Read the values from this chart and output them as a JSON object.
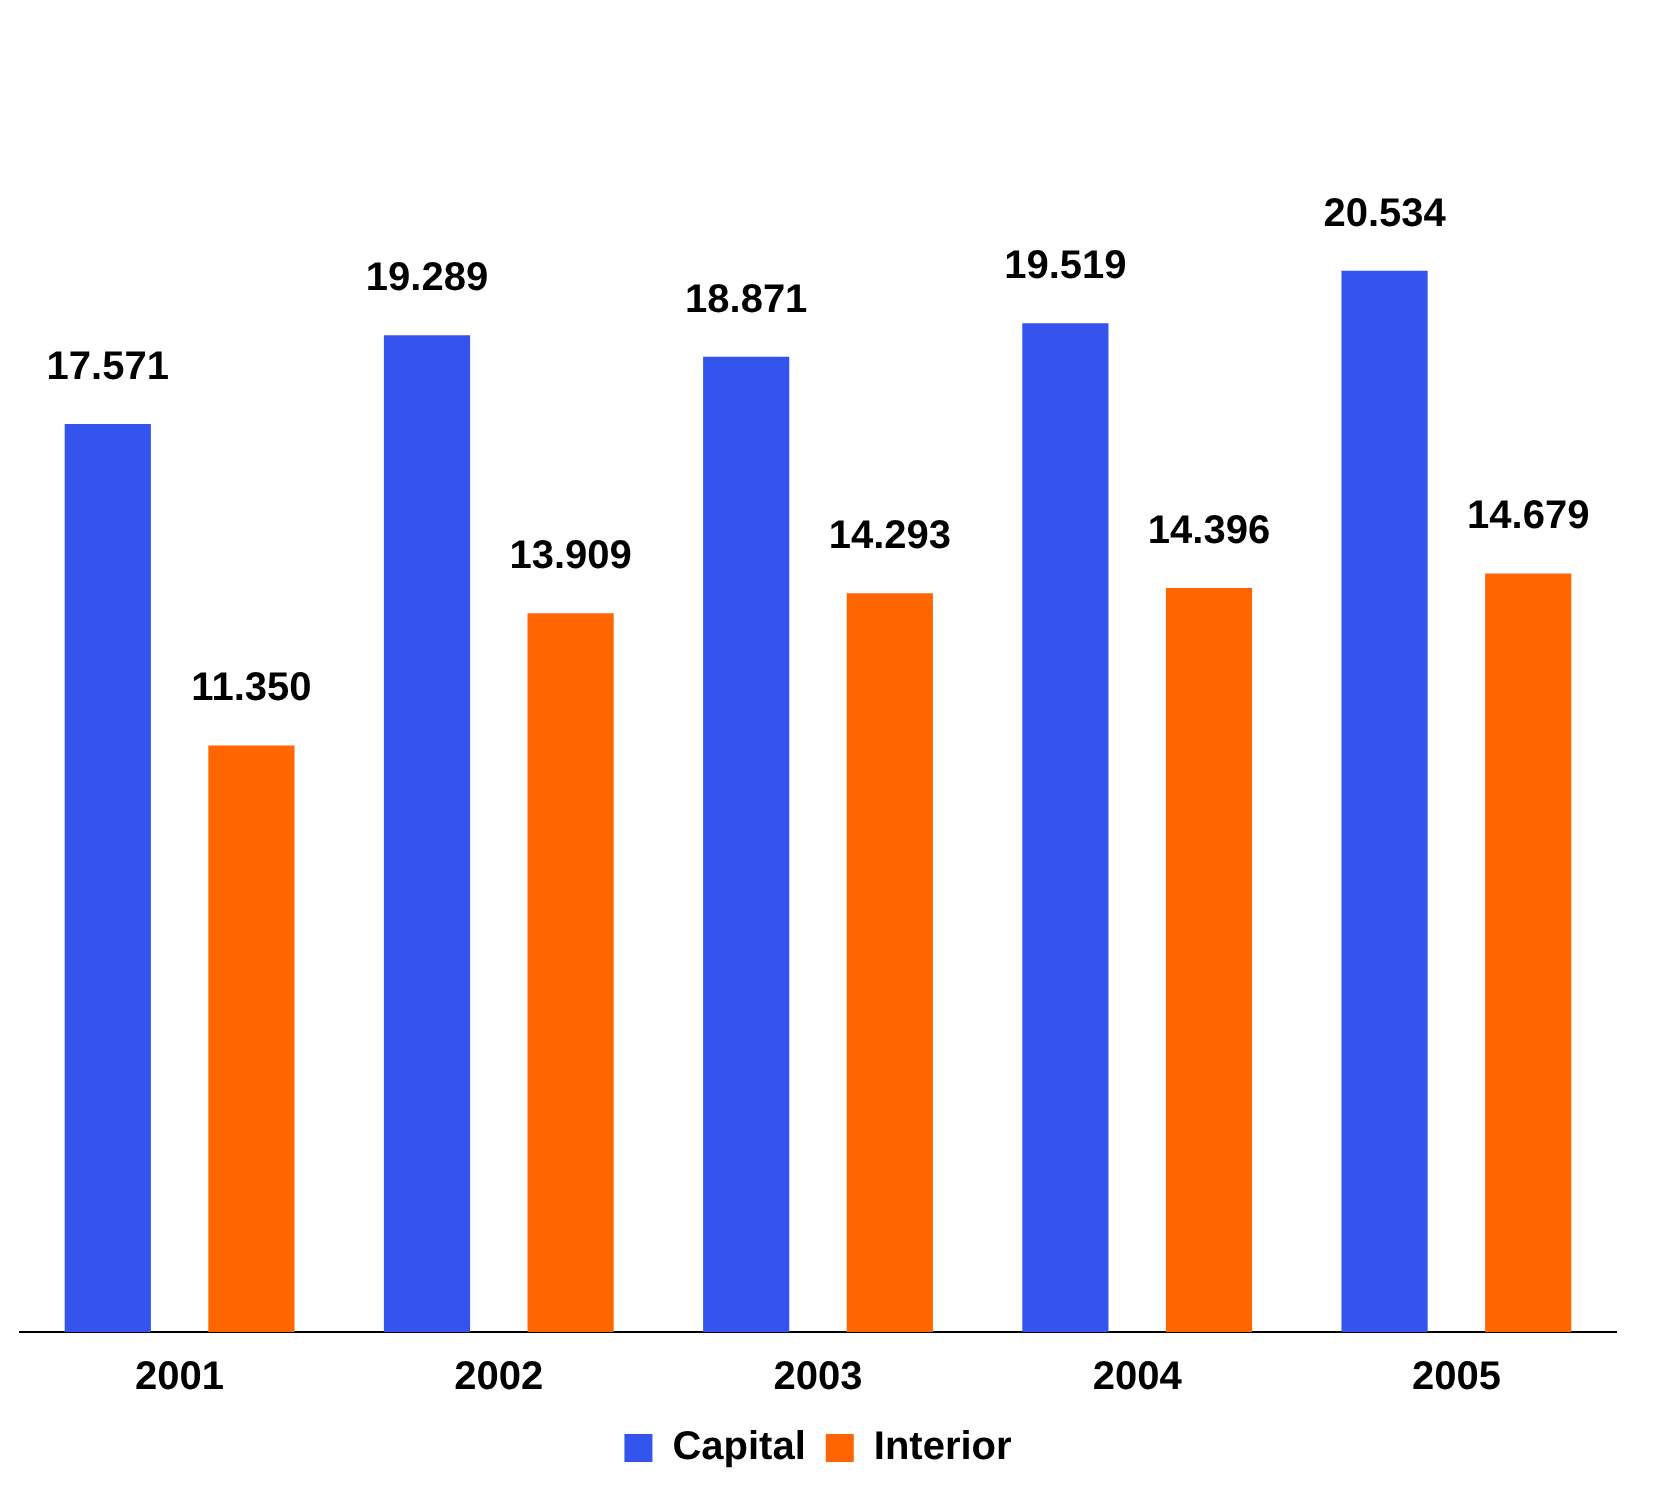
{
  "chart_data": {
    "type": "bar",
    "categories": [
      "2001",
      "2002",
      "2003",
      "2004",
      "2005"
    ],
    "series": [
      {
        "name": "Capital",
        "color": "#3355ee",
        "values": [
          17.571,
          19.289,
          18.871,
          19.519,
          20.534
        ],
        "value_labels": [
          "17.571",
          "19.289",
          "18.871",
          "19.519",
          "20.534"
        ]
      },
      {
        "name": "Interior",
        "color": "#ff6600",
        "values": [
          11.35,
          13.909,
          14.293,
          14.396,
          14.679
        ],
        "value_labels": [
          "11.350",
          "13.909",
          "14.293",
          "14.396",
          "14.679"
        ]
      }
    ],
    "grid": false,
    "legend": "bottom",
    "tick_labels": "x"
  }
}
